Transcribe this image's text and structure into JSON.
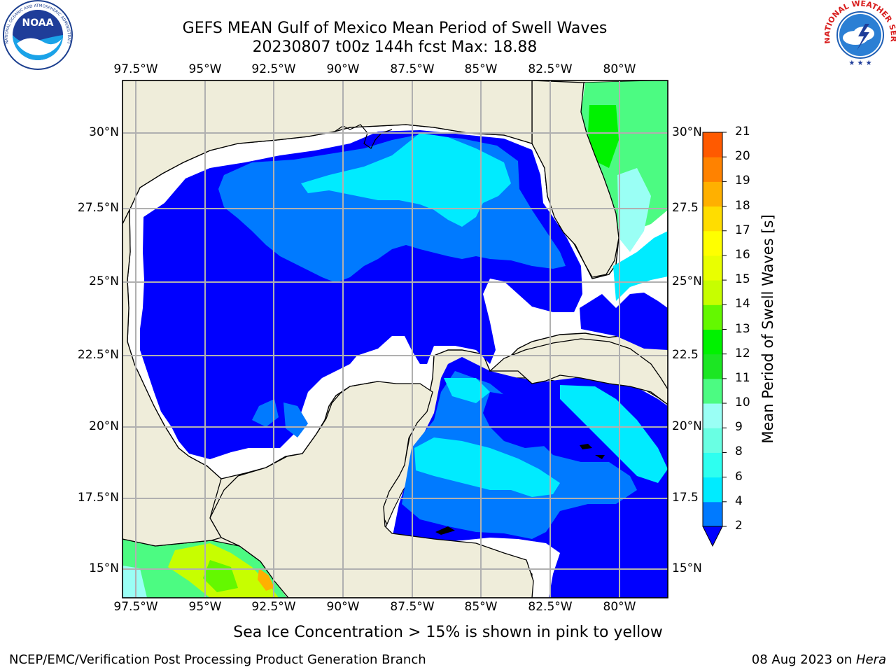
{
  "header": {
    "title": "GEFS MEAN Gulf of Mexico Mean Period of Swell Waves",
    "subtitle": "20230807 t00z 144h fcst   Max: 18.88"
  },
  "logos": {
    "left": {
      "name": "noaa-logo",
      "text": "NOAA",
      "ring_text": "NATIONAL OCEANIC AND ATMOSPHERIC ADMINISTRATION · U.S. DEPARTMENT OF COMMERCE"
    },
    "right": {
      "name": "nws-logo",
      "ring_text": "NATIONAL WEATHER SERVICE"
    }
  },
  "map": {
    "lon_labels": [
      "97.5°W",
      "95°W",
      "92.5°W",
      "90°W",
      "87.5°W",
      "85°W",
      "82.5°W",
      "80°W"
    ],
    "lat_labels": [
      "30°N",
      "27.5°N",
      "25°N",
      "22.5°N",
      "20°N",
      "17.5°N",
      "15°N"
    ],
    "lat_labels_right": [
      "30°N",
      "27.5",
      "25°N",
      "22.5",
      "20°N",
      "17.5",
      "15°N"
    ],
    "colors": {
      "land": "#efedda",
      "ocean_low": "#0000ff",
      "grid": "#b0b0b0"
    }
  },
  "colorbar": {
    "label": "Mean Period of Swell Waves [s]",
    "ticks": [
      "2",
      "4",
      "6",
      "8",
      "9",
      "10",
      "11",
      "12",
      "13",
      "14",
      "15",
      "16",
      "17",
      "18",
      "19",
      "20",
      "21"
    ],
    "colors": [
      "#007aff",
      "#00ebff",
      "#2efff0",
      "#69ffe3",
      "#9afff5",
      "#4cfb82",
      "#1ce623",
      "#00f200",
      "#64f800",
      "#c7fe00",
      "#e9ff00",
      "#ffff00",
      "#ffdd00",
      "#ffb000",
      "#ff8200",
      "#ff5a00",
      "#ff2800",
      "#ff0000"
    ],
    "under_color": "#0000ff"
  },
  "footer": {
    "note": "Sea Ice Concentration > 15% is shown in pink to yellow",
    "credit": "NCEP/EMC/Verification Post Processing Product Generation Branch",
    "date": "08 Aug 2023 on",
    "machine": "Hera"
  }
}
